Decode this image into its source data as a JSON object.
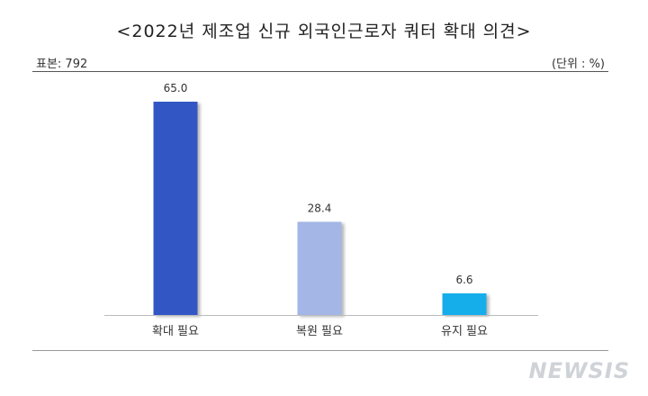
{
  "header": {
    "title": "<2022년 제조업 신규 외국인근로자 쿼터 확대 의견>",
    "sample": "표본: 792",
    "unit": "(단위 : %)"
  },
  "watermark": "NEWSIS",
  "chart_data": {
    "type": "bar",
    "categories": [
      "확대 필요",
      "복원 필요",
      "유지 필요"
    ],
    "values": [
      65.0,
      28.4,
      6.6
    ],
    "value_labels": [
      "65.0",
      "28.4",
      "6.6"
    ],
    "colors": [
      "#3057c4",
      "#a3b6e6",
      "#16aeea"
    ],
    "title": "<2022년 제조업 신규 외국인근로자 쿼터 확대 의견>",
    "ylim": [
      0,
      65
    ],
    "grid": false,
    "legend": "none"
  }
}
